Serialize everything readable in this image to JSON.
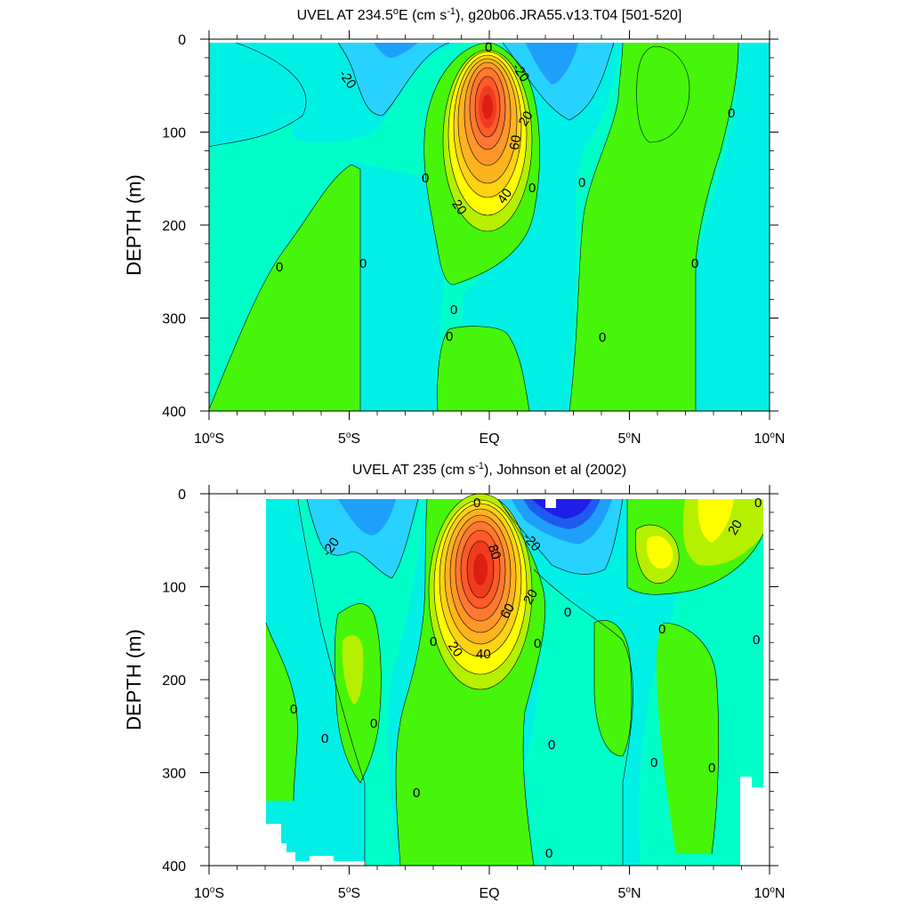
{
  "chart_data": [
    {
      "type": "contour",
      "title": "UVEL AT 234.5",
      "title_sup": "o",
      "title_mid": "E (cm s",
      "title_sup2": "-1",
      "title_tail": "), g20b06.JRA55.v13.T04 [501-520]",
      "ylabel": "DEPTH (m)",
      "y_ticks": [
        "0",
        "100",
        "200",
        "300",
        "400"
      ],
      "x_ticks": [
        "10",
        "5",
        "EQ",
        "5",
        "10"
      ],
      "x_tick_suffix": [
        "S",
        "S",
        "",
        "N",
        "N"
      ],
      "xlim": [
        -10,
        10
      ],
      "ylim": [
        0,
        400
      ],
      "contour_interval": 10,
      "core": {
        "lat": 0,
        "depth": 100,
        "max": 70
      },
      "contour_labels": [
        "-20",
        "-20",
        "20",
        "60",
        "40",
        "20",
        "0",
        "0",
        "0",
        "0",
        "0",
        "0",
        "0",
        "0",
        "0",
        "0"
      ]
    },
    {
      "type": "contour",
      "title": "UVEL AT 235 (cm s",
      "title_sup2": "-1",
      "title_tail": "), Johnson et al (2002)",
      "ylabel": "DEPTH (m)",
      "y_ticks": [
        "0",
        "100",
        "200",
        "300",
        "400"
      ],
      "x_ticks": [
        "10",
        "5",
        "EQ",
        "5",
        "10"
      ],
      "x_tick_suffix": [
        "S",
        "S",
        "",
        "N",
        "N"
      ],
      "xlim": [
        -10,
        10
      ],
      "ylim": [
        0,
        400
      ],
      "contour_interval": 10,
      "core": {
        "lat": -0.2,
        "depth": 85,
        "max": 90
      },
      "contour_labels": [
        "-20",
        "-20",
        "80",
        "60",
        "40",
        "20",
        "20",
        "20",
        "0",
        "0",
        "0",
        "0",
        "0",
        "0",
        "0",
        "0",
        "0",
        "0",
        "0",
        "0",
        "0",
        "0"
      ]
    }
  ],
  "colors": {
    "c_m50": "#1e1ee6",
    "c_m40": "#1e5af0",
    "c_m30": "#1ea0fa",
    "c_m20": "#28d2ff",
    "c_m10": "#00f0e6",
    "c_0": "#00ffc8",
    "c_10": "#46f50a",
    "c_20": "#b4f000",
    "c_30": "#ffff00",
    "c_40": "#ffd214",
    "c_50": "#ffb41e",
    "c_60": "#ff9628",
    "c_70": "#ff7832",
    "c_80": "#ff5a28",
    "c_90": "#f03c1e",
    "c_100": "#dc1e14"
  }
}
